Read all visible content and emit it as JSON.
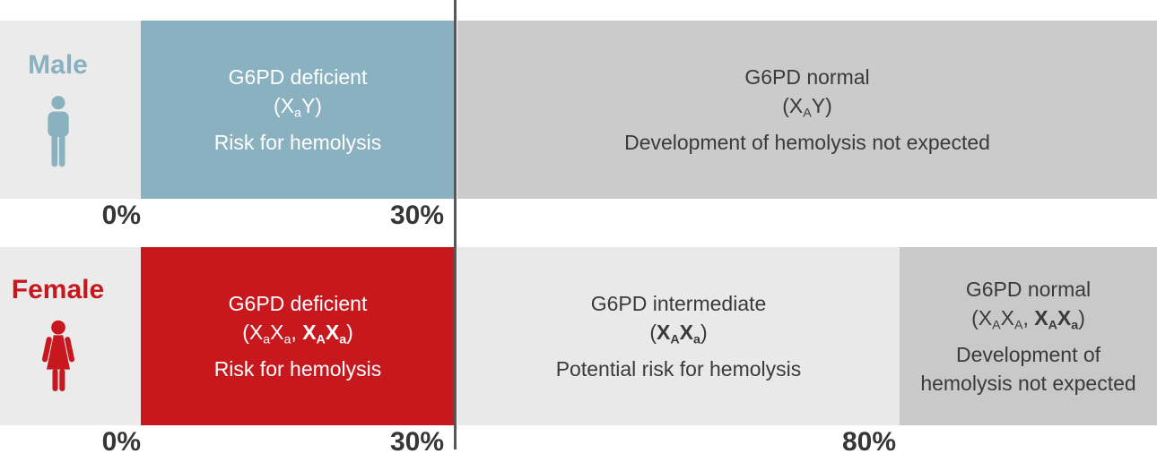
{
  "colors": {
    "male_accent": "#8ab1c0",
    "female_accent": "#c7181e",
    "male_normal_bg": "#cbcbcb",
    "female_intermediate_bg": "#e9e9e9",
    "female_normal_bg": "#c9c9c9",
    "label_bg": "#ebebeb",
    "dark_text": "#3a3a3c",
    "light_text": "#ffffff",
    "threshold_line": "#57575a"
  },
  "male": {
    "label": "Male",
    "icon": "male-icon",
    "segments": [
      {
        "title": "G6PD deficient",
        "genotype": [
          {
            "t": "(X"
          },
          {
            "t": "a",
            "c": "sub"
          },
          {
            "t": "Y)"
          }
        ],
        "note": "Risk for hemolysis"
      },
      {
        "title": "G6PD normal",
        "genotype": [
          {
            "t": "(X"
          },
          {
            "t": "A",
            "c": "sub"
          },
          {
            "t": "Y)"
          }
        ],
        "note": "Development of hemolysis not expected"
      }
    ],
    "axis": [
      "0%",
      "30%"
    ]
  },
  "female": {
    "label": "Female",
    "icon": "female-icon",
    "segments": [
      {
        "title": "G6PD deficient",
        "genotype": [
          {
            "t": "(X"
          },
          {
            "t": "a",
            "c": "sub"
          },
          {
            "t": "X"
          },
          {
            "t": "a",
            "c": "sub"
          },
          {
            "t": ", "
          },
          {
            "t": "X",
            "c": "b"
          },
          {
            "t": "A",
            "c": "b sub"
          },
          {
            "t": "X",
            "c": "b"
          },
          {
            "t": "a",
            "c": "b sub"
          },
          {
            "t": ")"
          }
        ],
        "note": "Risk for hemolysis"
      },
      {
        "title": "G6PD intermediate",
        "genotype": [
          {
            "t": "("
          },
          {
            "t": "X",
            "c": "b"
          },
          {
            "t": "A",
            "c": "b sub"
          },
          {
            "t": "X",
            "c": "b"
          },
          {
            "t": "a",
            "c": "b sub"
          },
          {
            "t": ")"
          }
        ],
        "note": "Potential risk for hemolysis"
      },
      {
        "title": "G6PD normal",
        "genotype": [
          {
            "t": "(X"
          },
          {
            "t": "A",
            "c": "sub"
          },
          {
            "t": "X"
          },
          {
            "t": "A",
            "c": "sub"
          },
          {
            "t": ", "
          },
          {
            "t": "X",
            "c": "b"
          },
          {
            "t": "A",
            "c": "b sub"
          },
          {
            "t": "X",
            "c": "b"
          },
          {
            "t": "a",
            "c": "b sub"
          },
          {
            "t": ")"
          }
        ],
        "note": "Development of hemolysis not expected"
      }
    ],
    "axis": [
      "0%",
      "30%",
      "80%"
    ]
  }
}
